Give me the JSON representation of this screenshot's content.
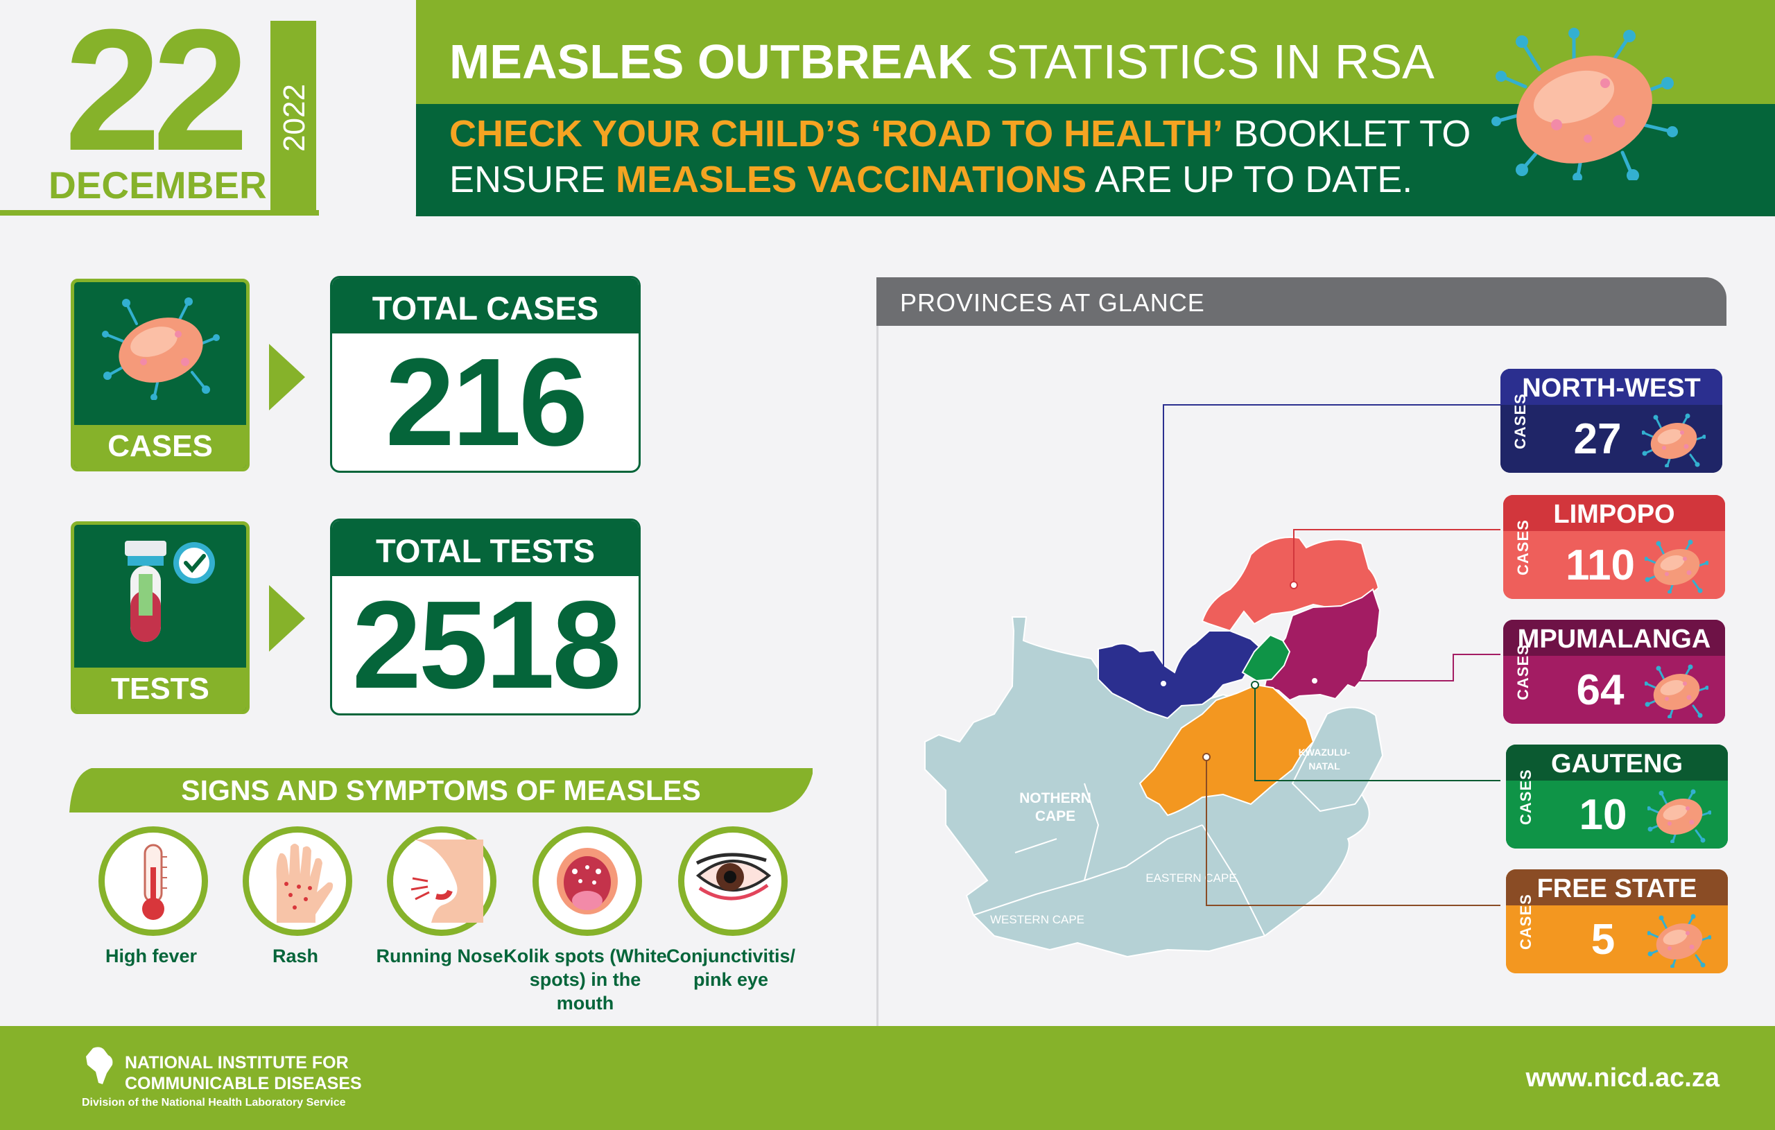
{
  "header": {
    "day": "22",
    "month": "DECEMBER",
    "year": "2022",
    "title_bold": "MEASLES OUTBREAK",
    "title_rest": " STATISTICS IN RSA",
    "message": {
      "part1": "CHECK YOUR CHILD’S ‘ROAD TO HEALTH’",
      "part2": " BOOKLET TO",
      "part3": "ENSURE ",
      "part4": "MEASLES VACCINATIONS",
      "part5": " ARE UP TO DATE."
    }
  },
  "stats": {
    "cases": {
      "icon_label": "CASES",
      "card_title": "TOTAL CASES",
      "value": "216",
      "icon": "virus-icon"
    },
    "tests": {
      "icon_label": "TESTS",
      "card_title": "TOTAL TESTS",
      "value": "2518",
      "icon": "test-tube-icon"
    }
  },
  "symptoms": {
    "title": "SIGNS AND SYMPTOMS OF MEASLES",
    "items": [
      {
        "label": "High fever",
        "icon": "thermometer-icon"
      },
      {
        "label": "Rash",
        "icon": "rash-hand-icon"
      },
      {
        "label": "Running Nose",
        "icon": "nose-icon"
      },
      {
        "label": "Kolik spots (White spots) in the mouth",
        "icon": "mouth-icon"
      },
      {
        "label": "Conjunctivitis/ pink eye",
        "icon": "eye-icon"
      }
    ]
  },
  "map": {
    "title": "PROVINCES AT GLANCE",
    "region_labels": {
      "northern_cape": "NOTHERN CAPE",
      "western_cape": "WESTERN CAPE",
      "eastern_cape": "EASTERN CAPE",
      "kwazulu_natal": "KWAZULU- NATAL"
    },
    "cases_label": "CASES",
    "provinces": [
      {
        "name": "NORTH-WEST",
        "cases": "27",
        "head_color": "#2b2f8f",
        "body_color": "#1f2567"
      },
      {
        "name": "LIMPOPO",
        "cases": "110",
        "head_color": "#d2363c",
        "body_color": "#ee5f5b"
      },
      {
        "name": "MPUMALANGA",
        "cases": "64",
        "head_color": "#6e1246",
        "body_color": "#a31c63"
      },
      {
        "name": "GAUTENG",
        "cases": "10",
        "head_color": "#0b5a31",
        "body_color": "#0f9447"
      },
      {
        "name": "FREE STATE",
        "cases": "5",
        "head_color": "#8a4c25",
        "body_color": "#f39720"
      }
    ]
  },
  "footer": {
    "org_line1": "NATIONAL INSTITUTE FOR",
    "org_line2": "COMMUNICABLE DISEASES",
    "org_line3": "Division of the National Health Laboratory Service",
    "url": "www.nicd.ac.za"
  },
  "colors": {
    "brand_green": "#86b22a",
    "dark_green": "#05653a",
    "accent_orange": "#f5a422",
    "background": "#f3f3f5"
  }
}
